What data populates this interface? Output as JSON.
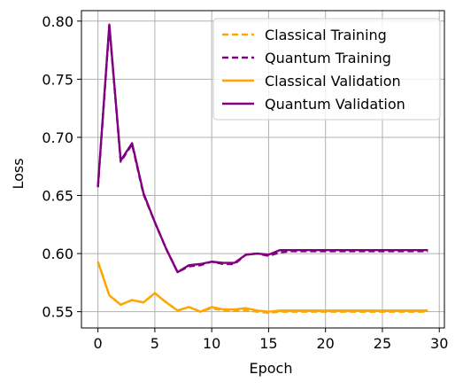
{
  "chart_data": {
    "type": "line",
    "title": "",
    "xlabel": "Epoch",
    "ylabel": "Loss",
    "xlim": [
      -1.45,
      30.45
    ],
    "ylim": [
      0.536,
      0.809
    ],
    "xticks": [
      0,
      5,
      10,
      15,
      20,
      25,
      30
    ],
    "xtick_labels": [
      "0",
      "5",
      "10",
      "15",
      "20",
      "25",
      "30"
    ],
    "yticks": [
      0.55,
      0.6,
      0.65,
      0.7,
      0.75,
      0.8
    ],
    "ytick_labels": [
      "0.55",
      "0.60",
      "0.65",
      "0.70",
      "0.75",
      "0.80"
    ],
    "grid": true,
    "legend_position": "top-right",
    "x": [
      0,
      1,
      2,
      3,
      4,
      5,
      6,
      7,
      8,
      9,
      10,
      11,
      12,
      13,
      14,
      15,
      16,
      17,
      18,
      19,
      20,
      21,
      22,
      23,
      24,
      25,
      26,
      27,
      28,
      29
    ],
    "series": [
      {
        "name": "Classical Training",
        "color": "#FFA500",
        "style": "dashed",
        "values": [
          0.593,
          0.564,
          0.556,
          0.56,
          0.558,
          0.566,
          0.558,
          0.551,
          0.554,
          0.55,
          0.553,
          0.551,
          0.551,
          0.551,
          0.55,
          0.549,
          0.55,
          0.55,
          0.55,
          0.55,
          0.55,
          0.55,
          0.55,
          0.55,
          0.55,
          0.55,
          0.55,
          0.55,
          0.55,
          0.55
        ]
      },
      {
        "name": "Quantum Training",
        "color": "#800080",
        "style": "dashed",
        "values": [
          0.657,
          0.796,
          0.679,
          0.694,
          0.651,
          0.627,
          0.604,
          0.584,
          0.589,
          0.59,
          0.593,
          0.591,
          0.591,
          0.599,
          0.6,
          0.598,
          0.601,
          0.602,
          0.602,
          0.602,
          0.602,
          0.602,
          0.602,
          0.602,
          0.602,
          0.602,
          0.602,
          0.602,
          0.602,
          0.602
        ]
      },
      {
        "name": "Classical Validation",
        "color": "#FFA500",
        "style": "solid",
        "values": [
          0.593,
          0.564,
          0.556,
          0.56,
          0.558,
          0.566,
          0.558,
          0.551,
          0.554,
          0.55,
          0.554,
          0.552,
          0.552,
          0.553,
          0.551,
          0.55,
          0.551,
          0.551,
          0.551,
          0.551,
          0.551,
          0.551,
          0.551,
          0.551,
          0.551,
          0.551,
          0.551,
          0.551,
          0.551,
          0.551
        ]
      },
      {
        "name": "Quantum Validation",
        "color": "#800080",
        "style": "solid",
        "values": [
          0.658,
          0.797,
          0.68,
          0.695,
          0.652,
          0.627,
          0.604,
          0.584,
          0.59,
          0.591,
          0.593,
          0.592,
          0.592,
          0.599,
          0.6,
          0.599,
          0.603,
          0.603,
          0.603,
          0.603,
          0.603,
          0.603,
          0.603,
          0.603,
          0.603,
          0.603,
          0.603,
          0.603,
          0.603,
          0.603
        ]
      }
    ]
  }
}
